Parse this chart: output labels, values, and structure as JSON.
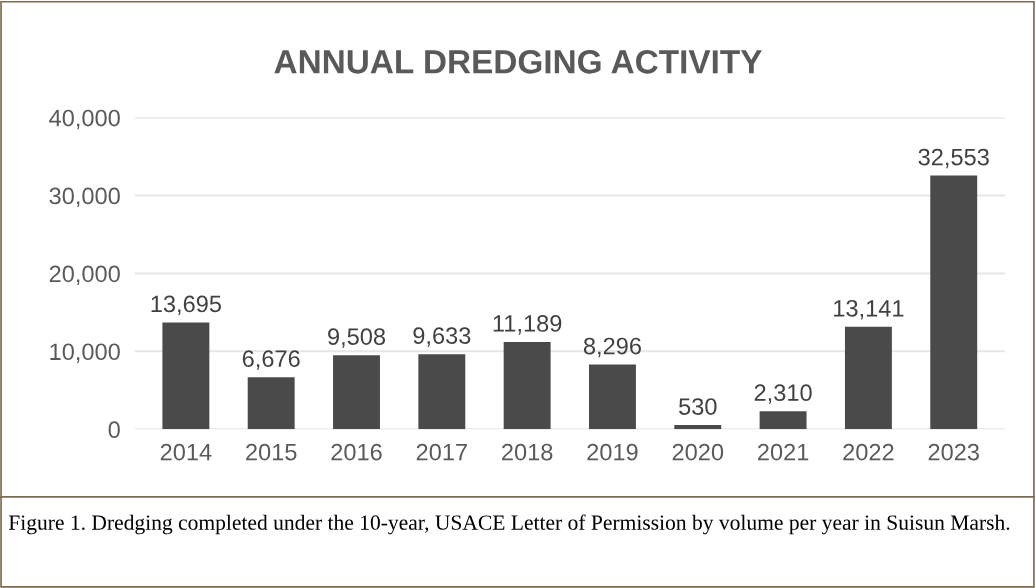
{
  "chart_data": {
    "type": "bar",
    "title": "ANNUAL DREDGING ACTIVITY",
    "categories": [
      "2014",
      "2015",
      "2016",
      "2017",
      "2018",
      "2019",
      "2020",
      "2021",
      "2022",
      "2023"
    ],
    "values": [
      13695,
      6676,
      9508,
      9633,
      11189,
      8296,
      530,
      2310,
      13141,
      32553
    ],
    "color": "#4a4a4a",
    "ylim": [
      0,
      40000
    ],
    "yticks": [
      {
        "value": 0,
        "label": "0"
      },
      {
        "value": 10000,
        "label": "10,000"
      },
      {
        "value": 20000,
        "label": "20,000"
      },
      {
        "value": 30000,
        "label": "30,000"
      },
      {
        "value": 40000,
        "label": "40,000"
      }
    ],
    "grid": "y",
    "value_labels": [
      "13,695",
      "6,676",
      "9,508",
      "9,633",
      "11,189",
      "8,296",
      "530",
      "2,310",
      "13,141",
      "32,553"
    ],
    "annotations": [
      "Figure 1. Dredging completed under the 10-year, USACE Letter of Permission by volume per year in Suisun Marsh."
    ]
  }
}
